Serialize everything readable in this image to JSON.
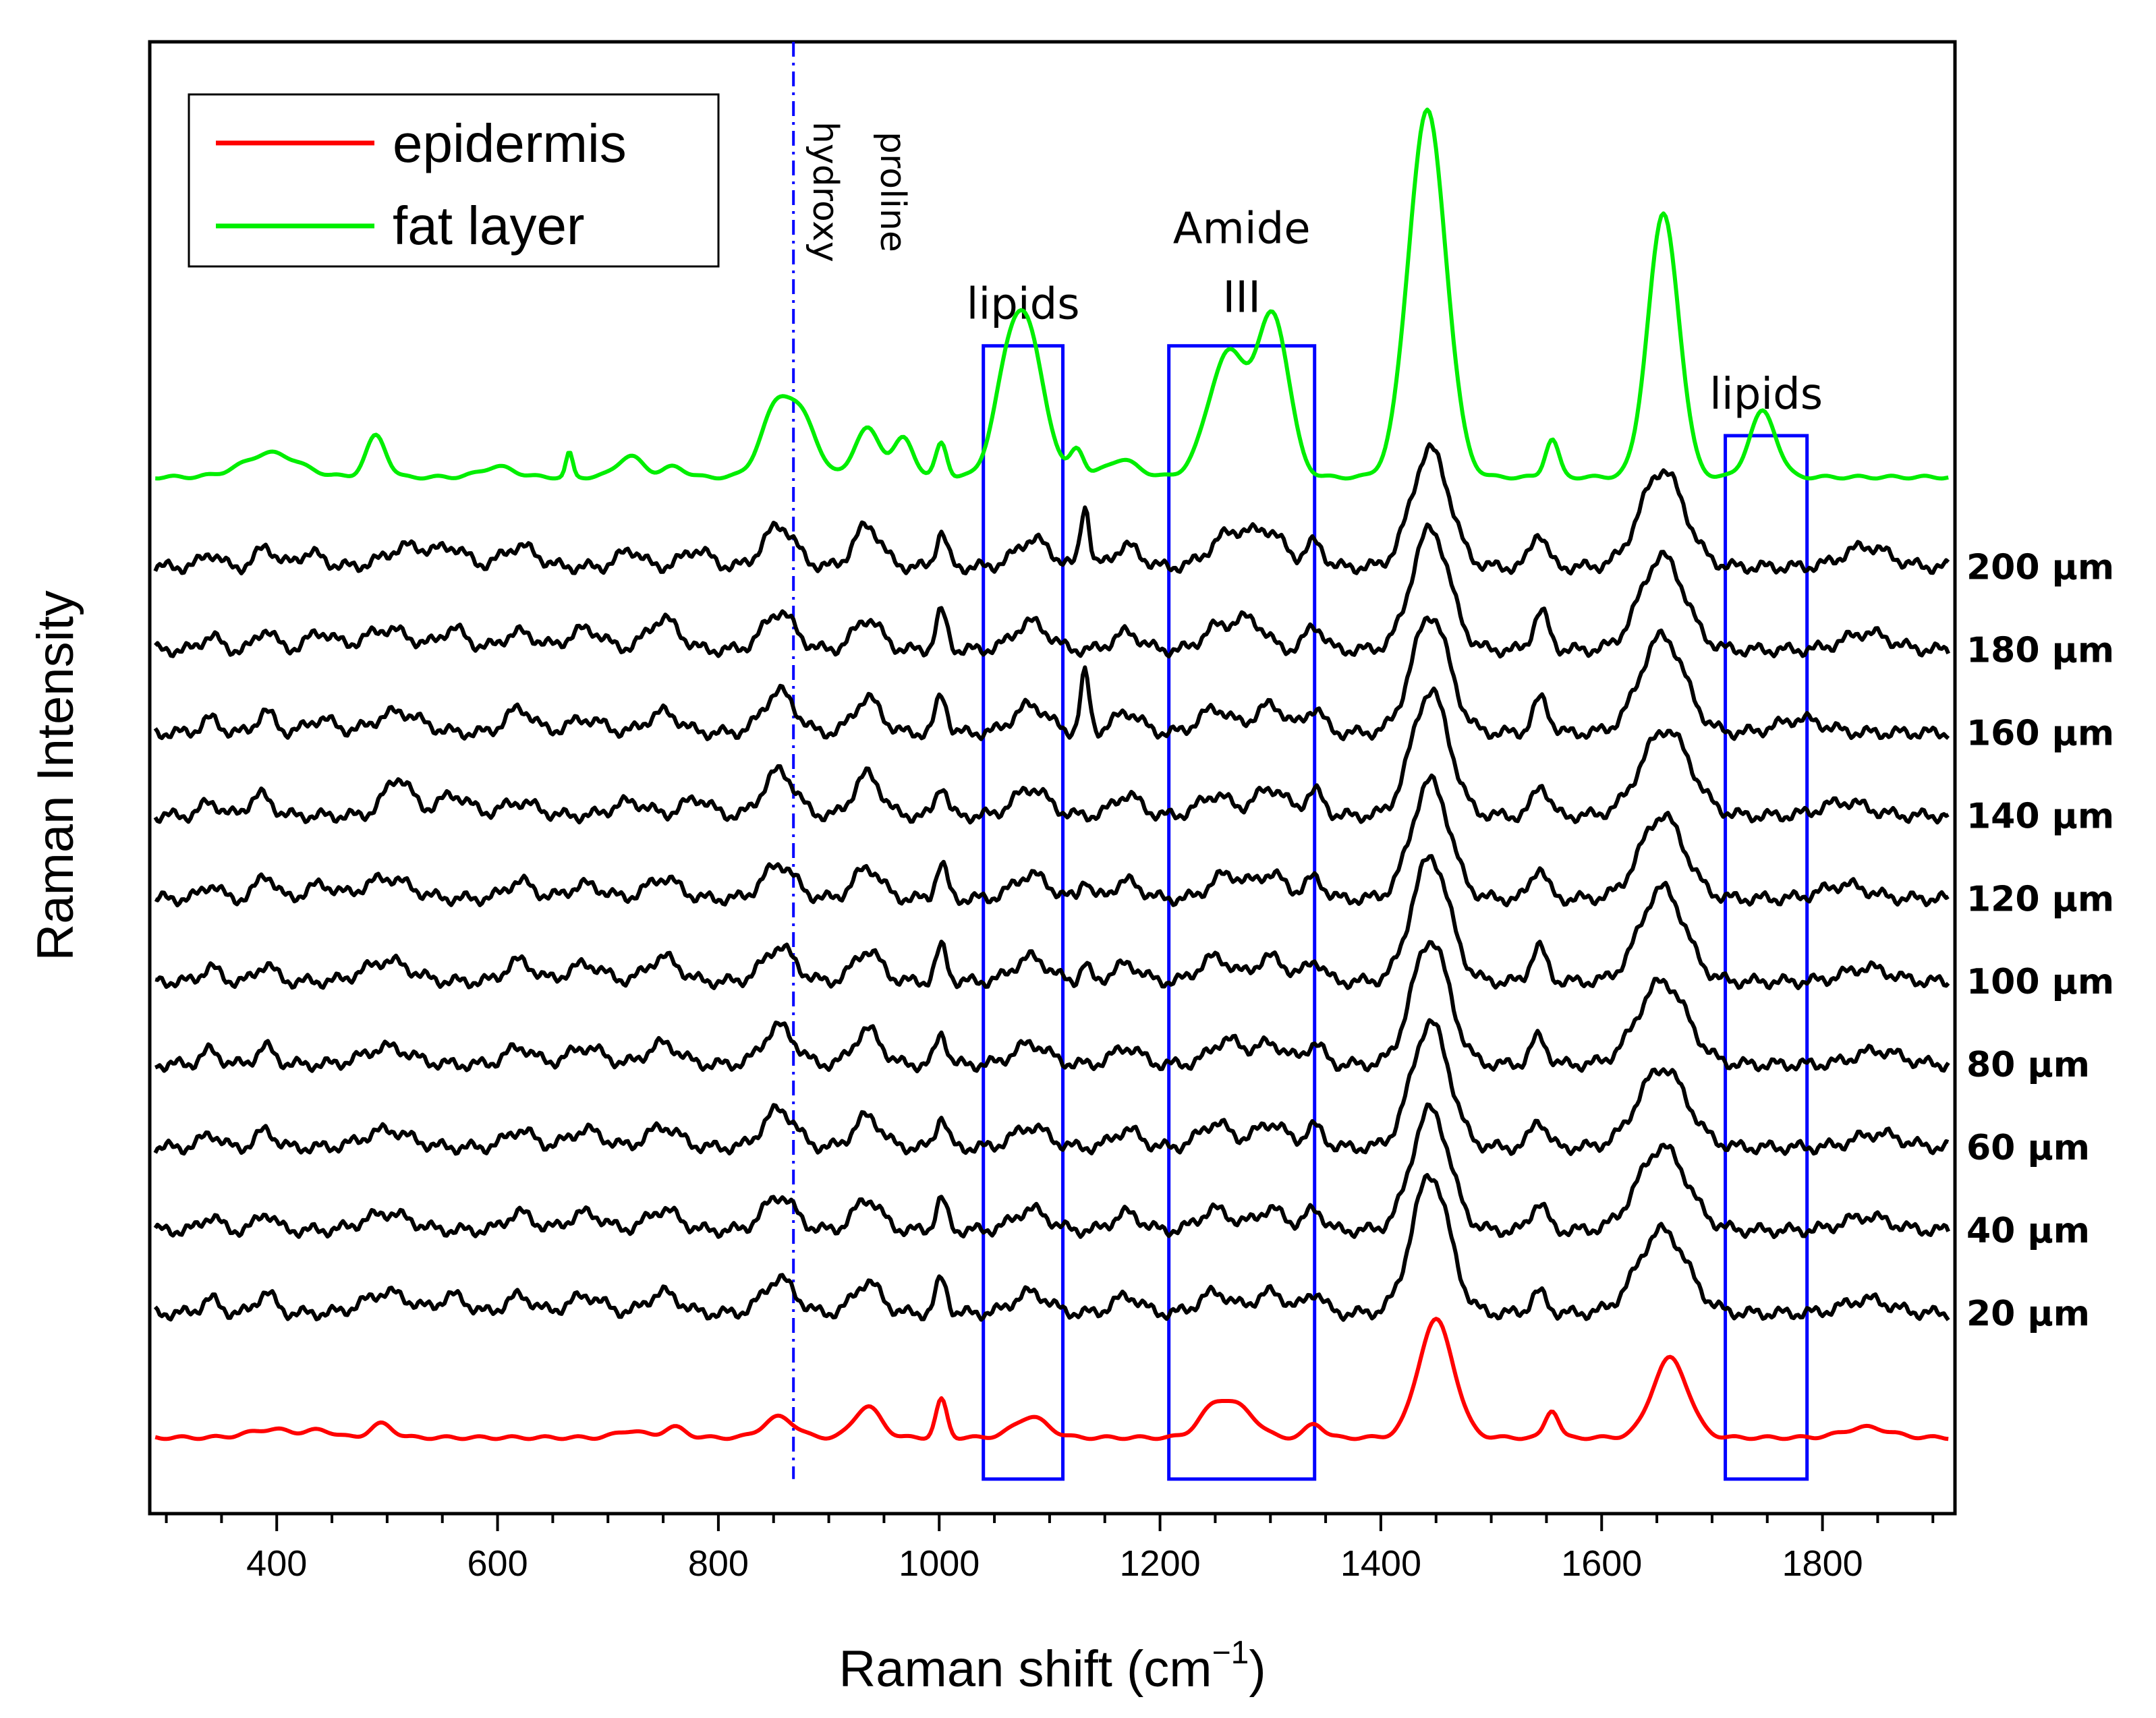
{
  "chart_data": {
    "type": "line",
    "xlabel": "Raman shift (cm",
    "xlabel_sup": "−1",
    "xlabel_end": ")",
    "ylabel": "Raman Intensity",
    "xlim": [
      285,
      1920
    ],
    "x_ticks": [
      "400",
      "600",
      "800",
      "1000",
      "1200",
      "1400",
      "1600",
      "1800"
    ],
    "legend": [
      {
        "name": "epidermis",
        "color": "#ff0000"
      },
      {
        "name": "fat layer",
        "color": "#00ee00"
      }
    ],
    "vline": {
      "x": 868,
      "color": "#0000ff",
      "label1": "hydroxy",
      "label2": "proline"
    },
    "regions": [
      {
        "x0": 1040,
        "x1": 1112,
        "label1": "lipids",
        "label2": ""
      },
      {
        "x0": 1208,
        "x1": 1340,
        "label1": "Amide",
        "label2": "III"
      },
      {
        "x0": 1712,
        "x1": 1786,
        "label1": "lipids",
        "label2": ""
      }
    ],
    "region_color": "#0000ff",
    "series": [
      {
        "name": "fat layer",
        "color": "#00ee00",
        "offset": 11.2,
        "peaks": [
          [
            395,
            0.35,
            25
          ],
          [
            490,
            0.6,
            9
          ],
          [
            600,
            0.15,
            15
          ],
          [
            665,
            0.35,
            3
          ],
          [
            720,
            0.3,
            12
          ],
          [
            760,
            0.15,
            10
          ],
          [
            855,
            1.1,
            15
          ],
          [
            880,
            0.6,
            12
          ],
          [
            935,
            0.7,
            12
          ],
          [
            968,
            0.55,
            9
          ],
          [
            1002,
            0.5,
            5
          ],
          [
            1063,
            1.3,
            14
          ],
          [
            1082,
            1.7,
            15
          ],
          [
            1125,
            0.4,
            6
          ],
          [
            1165,
            0.25,
            15
          ],
          [
            1262,
            1.8,
            18
          ],
          [
            1303,
            2.25,
            14
          ],
          [
            1442,
            5.3,
            17
          ],
          [
            1555,
            0.55,
            6
          ],
          [
            1656,
            3.8,
            14
          ],
          [
            1746,
            0.95,
            12
          ]
        ]
      },
      {
        "name": "200 µm",
        "color": "#000000",
        "offset": 9.9,
        "peaks": [
          [
            340,
            0.2,
            8
          ],
          [
            390,
            0.3,
            8
          ],
          [
            430,
            0.2,
            12
          ],
          [
            520,
            0.3,
            20
          ],
          [
            560,
            0.25,
            12
          ],
          [
            620,
            0.3,
            15
          ],
          [
            720,
            0.25,
            10
          ],
          [
            780,
            0.25,
            12
          ],
          [
            855,
            0.6,
            14
          ],
          [
            935,
            0.6,
            12
          ],
          [
            1002,
            0.5,
            5
          ],
          [
            1085,
            0.4,
            15
          ],
          [
            1132,
            0.9,
            4
          ],
          [
            1170,
            0.3,
            12
          ],
          [
            1265,
            0.5,
            18
          ],
          [
            1300,
            0.45,
            14
          ],
          [
            1340,
            0.35,
            8
          ],
          [
            1445,
            1.7,
            17
          ],
          [
            1543,
            0.5,
            7
          ],
          [
            1655,
            1.4,
            20
          ],
          [
            1840,
            0.3,
            20
          ]
        ]
      },
      {
        "name": "180 µm",
        "color": "#000000",
        "offset": 8.7,
        "peaks": [
          [
            340,
            0.2,
            8
          ],
          [
            390,
            0.3,
            8
          ],
          [
            440,
            0.25,
            12
          ],
          [
            500,
            0.3,
            20
          ],
          [
            560,
            0.3,
            12
          ],
          [
            620,
            0.25,
            15
          ],
          [
            680,
            0.3,
            15
          ],
          [
            750,
            0.45,
            14
          ],
          [
            855,
            0.55,
            14
          ],
          [
            935,
            0.45,
            12
          ],
          [
            1002,
            0.55,
            5
          ],
          [
            1083,
            0.4,
            15
          ],
          [
            1170,
            0.25,
            12
          ],
          [
            1250,
            0.3,
            12
          ],
          [
            1280,
            0.45,
            14
          ],
          [
            1340,
            0.35,
            8
          ],
          [
            1445,
            1.75,
            17
          ],
          [
            1545,
            0.55,
            7
          ],
          [
            1655,
            1.35,
            20
          ],
          [
            1840,
            0.25,
            20
          ]
        ]
      },
      {
        "name": "160 µm",
        "color": "#000000",
        "offset": 7.5,
        "peaks": [
          [
            340,
            0.2,
            8
          ],
          [
            390,
            0.3,
            8
          ],
          [
            440,
            0.2,
            12
          ],
          [
            510,
            0.3,
            20
          ],
          [
            620,
            0.35,
            12
          ],
          [
            680,
            0.2,
            15
          ],
          [
            750,
            0.3,
            14
          ],
          [
            855,
            0.6,
            14
          ],
          [
            935,
            0.5,
            12
          ],
          [
            1002,
            0.55,
            5
          ],
          [
            1083,
            0.4,
            15
          ],
          [
            1132,
            0.85,
            4
          ],
          [
            1170,
            0.3,
            12
          ],
          [
            1250,
            0.35,
            14
          ],
          [
            1300,
            0.4,
            14
          ],
          [
            1340,
            0.35,
            8
          ],
          [
            1445,
            1.7,
            17
          ],
          [
            1545,
            0.5,
            7
          ],
          [
            1655,
            1.4,
            20
          ],
          [
            1780,
            0.2,
            20
          ]
        ]
      },
      {
        "name": "140 µm",
        "color": "#000000",
        "offset": 6.3,
        "peaks": [
          [
            340,
            0.2,
            8
          ],
          [
            385,
            0.3,
            10
          ],
          [
            510,
            0.55,
            12
          ],
          [
            560,
            0.3,
            14
          ],
          [
            620,
            0.2,
            15
          ],
          [
            720,
            0.2,
            15
          ],
          [
            780,
            0.25,
            12
          ],
          [
            855,
            0.65,
            14
          ],
          [
            935,
            0.6,
            12
          ],
          [
            1002,
            0.45,
            5
          ],
          [
            1083,
            0.4,
            15
          ],
          [
            1170,
            0.3,
            12
          ],
          [
            1250,
            0.3,
            14
          ],
          [
            1300,
            0.4,
            14
          ],
          [
            1340,
            0.35,
            8
          ],
          [
            1445,
            1.8,
            17
          ],
          [
            1545,
            0.45,
            7
          ],
          [
            1658,
            1.25,
            22
          ],
          [
            1820,
            0.2,
            20
          ]
        ]
      },
      {
        "name": "120 µm",
        "color": "#000000",
        "offset": 5.1,
        "peaks": [
          [
            340,
            0.2,
            8
          ],
          [
            390,
            0.35,
            8
          ],
          [
            440,
            0.2,
            12
          ],
          [
            500,
            0.3,
            20
          ],
          [
            620,
            0.25,
            12
          ],
          [
            680,
            0.2,
            15
          ],
          [
            750,
            0.3,
            14
          ],
          [
            855,
            0.5,
            14
          ],
          [
            935,
            0.45,
            12
          ],
          [
            1002,
            0.5,
            5
          ],
          [
            1083,
            0.35,
            15
          ],
          [
            1132,
            0.3,
            4
          ],
          [
            1170,
            0.25,
            12
          ],
          [
            1260,
            0.35,
            14
          ],
          [
            1300,
            0.35,
            14
          ],
          [
            1340,
            0.3,
            8
          ],
          [
            1445,
            1.7,
            17
          ],
          [
            1543,
            0.45,
            7
          ],
          [
            1655,
            1.2,
            20
          ],
          [
            1820,
            0.2,
            20
          ]
        ]
      },
      {
        "name": "100 µm",
        "color": "#000000",
        "offset": 3.9,
        "peaks": [
          [
            340,
            0.2,
            8
          ],
          [
            390,
            0.25,
            8
          ],
          [
            500,
            0.3,
            20
          ],
          [
            620,
            0.3,
            12
          ],
          [
            680,
            0.25,
            15
          ],
          [
            750,
            0.35,
            14
          ],
          [
            855,
            0.5,
            14
          ],
          [
            935,
            0.45,
            12
          ],
          [
            1002,
            0.5,
            5
          ],
          [
            1083,
            0.35,
            15
          ],
          [
            1132,
            0.25,
            4
          ],
          [
            1170,
            0.25,
            12
          ],
          [
            1250,
            0.35,
            14
          ],
          [
            1300,
            0.35,
            14
          ],
          [
            1340,
            0.3,
            8
          ],
          [
            1445,
            1.8,
            17
          ],
          [
            1543,
            0.5,
            7
          ],
          [
            1655,
            1.35,
            20
          ],
          [
            1840,
            0.2,
            20
          ]
        ]
      },
      {
        "name": "80 µm",
        "color": "#000000",
        "offset": 2.7,
        "peaks": [
          [
            340,
            0.2,
            8
          ],
          [
            390,
            0.25,
            8
          ],
          [
            500,
            0.25,
            20
          ],
          [
            620,
            0.25,
            12
          ],
          [
            680,
            0.25,
            15
          ],
          [
            750,
            0.3,
            14
          ],
          [
            855,
            0.55,
            14
          ],
          [
            935,
            0.5,
            12
          ],
          [
            1002,
            0.45,
            5
          ],
          [
            1083,
            0.3,
            15
          ],
          [
            1170,
            0.25,
            12
          ],
          [
            1260,
            0.35,
            14
          ],
          [
            1300,
            0.3,
            14
          ],
          [
            1340,
            0.3,
            8
          ],
          [
            1445,
            1.8,
            17
          ],
          [
            1543,
            0.4,
            7
          ],
          [
            1655,
            1.2,
            22
          ],
          [
            1850,
            0.2,
            20
          ]
        ]
      },
      {
        "name": "60 µm",
        "color": "#000000",
        "offset": 1.5,
        "peaks": [
          [
            340,
            0.2,
            8
          ],
          [
            390,
            0.25,
            8
          ],
          [
            500,
            0.25,
            20
          ],
          [
            620,
            0.25,
            12
          ],
          [
            680,
            0.25,
            15
          ],
          [
            750,
            0.3,
            14
          ],
          [
            855,
            0.55,
            14
          ],
          [
            935,
            0.45,
            12
          ],
          [
            1002,
            0.45,
            5
          ],
          [
            1083,
            0.3,
            15
          ],
          [
            1170,
            0.25,
            12
          ],
          [
            1250,
            0.35,
            14
          ],
          [
            1300,
            0.35,
            14
          ],
          [
            1340,
            0.3,
            8
          ],
          [
            1445,
            1.8,
            17
          ],
          [
            1543,
            0.4,
            7
          ],
          [
            1655,
            1.15,
            22
          ],
          [
            1850,
            0.2,
            20
          ]
        ]
      },
      {
        "name": "40 µm",
        "color": "#000000",
        "offset": 0.3,
        "peaks": [
          [
            340,
            0.2,
            8
          ],
          [
            390,
            0.25,
            8
          ],
          [
            500,
            0.25,
            20
          ],
          [
            620,
            0.25,
            12
          ],
          [
            680,
            0.25,
            15
          ],
          [
            750,
            0.3,
            14
          ],
          [
            855,
            0.5,
            14
          ],
          [
            935,
            0.45,
            12
          ],
          [
            1002,
            0.45,
            5
          ],
          [
            1083,
            0.3,
            15
          ],
          [
            1170,
            0.25,
            12
          ],
          [
            1250,
            0.3,
            14
          ],
          [
            1300,
            0.3,
            14
          ],
          [
            1340,
            0.3,
            8
          ],
          [
            1445,
            1.75,
            17
          ],
          [
            1543,
            0.4,
            7
          ],
          [
            1655,
            1.2,
            22
          ],
          [
            1840,
            0.2,
            20
          ]
        ]
      },
      {
        "name": "20 µm",
        "color": "#000000",
        "offset": -0.9,
        "peaks": [
          [
            340,
            0.2,
            8
          ],
          [
            390,
            0.3,
            8
          ],
          [
            500,
            0.3,
            20
          ],
          [
            560,
            0.25,
            12
          ],
          [
            620,
            0.25,
            12
          ],
          [
            680,
            0.25,
            15
          ],
          [
            750,
            0.3,
            14
          ],
          [
            855,
            0.5,
            14
          ],
          [
            935,
            0.45,
            12
          ],
          [
            1002,
            0.5,
            5
          ],
          [
            1083,
            0.3,
            15
          ],
          [
            1170,
            0.25,
            12
          ],
          [
            1250,
            0.3,
            14
          ],
          [
            1300,
            0.3,
            14
          ],
          [
            1340,
            0.3,
            8
          ],
          [
            1445,
            2.0,
            17
          ],
          [
            1543,
            0.3,
            7
          ],
          [
            1655,
            1.2,
            22
          ],
          [
            1840,
            0.2,
            20
          ]
        ]
      },
      {
        "name": "epidermis",
        "color": "#ff0000",
        "offset": -2.7,
        "peaks": [
          [
            395,
            0.12,
            20
          ],
          [
            440,
            0.1,
            12
          ],
          [
            495,
            0.2,
            10
          ],
          [
            720,
            0.1,
            12
          ],
          [
            760,
            0.15,
            10
          ],
          [
            855,
            0.3,
            14
          ],
          [
            935,
            0.45,
            12
          ],
          [
            1002,
            0.55,
            5
          ],
          [
            1083,
            0.3,
            15
          ],
          [
            1250,
            0.45,
            14
          ],
          [
            1275,
            0.35,
            14
          ],
          [
            1340,
            0.2,
            8
          ],
          [
            1450,
            1.7,
            16
          ],
          [
            1555,
            0.4,
            6
          ],
          [
            1662,
            1.15,
            16
          ],
          [
            1840,
            0.15,
            20
          ]
        ]
      }
    ],
    "sample_labels": [
      "200 µm",
      "180 µm",
      "160 µm",
      "140 µm",
      "120 µm",
      "100 µm",
      "80 µm",
      "60 µm",
      "40 µm",
      "20 µm"
    ],
    "ylim": [
      -3.8,
      17.5
    ]
  }
}
